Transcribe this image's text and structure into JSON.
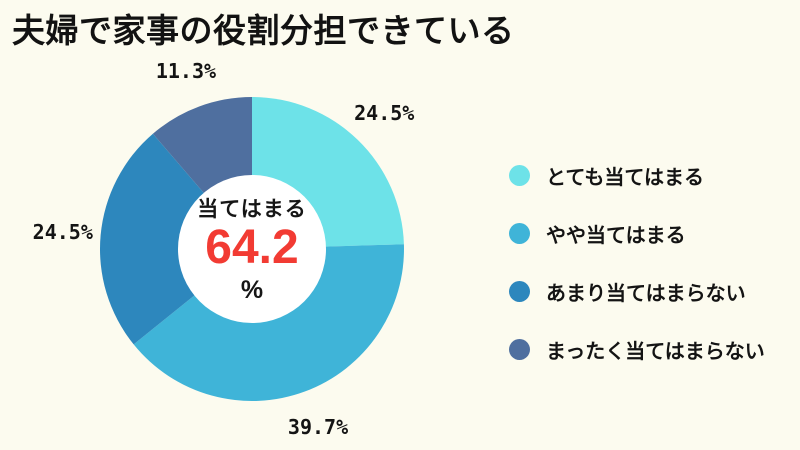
{
  "page": {
    "background": "#FCFBEF",
    "title": "夫婦で家事の役割分担できている"
  },
  "chart_data": {
    "type": "pie",
    "subtype": "donut",
    "title": "夫婦で家事の役割分担できている",
    "unit": "%",
    "direction": "clockwise",
    "start_angle_deg": 0,
    "legend_position": "right",
    "hole_color": "#FFFFFF",
    "center_label": {
      "text": "当てはまる",
      "value": "64.2",
      "unit": "%",
      "value_color": "#F23B33"
    },
    "segments": [
      {
        "label": "とても当てはまる",
        "value": 24.5,
        "color": "#6DE2E8"
      },
      {
        "label": "やや当てはまる",
        "value": 39.7,
        "color": "#3FB4D8"
      },
      {
        "label": "あまり当てはまらない",
        "value": 24.5,
        "color": "#2D87BD"
      },
      {
        "label": "まったく当てはまらない",
        "value": 11.3,
        "color": "#4F6F9F"
      }
    ],
    "value_labels": [
      "24.5%",
      "39.7%",
      "24.5%",
      "11.3%"
    ]
  }
}
